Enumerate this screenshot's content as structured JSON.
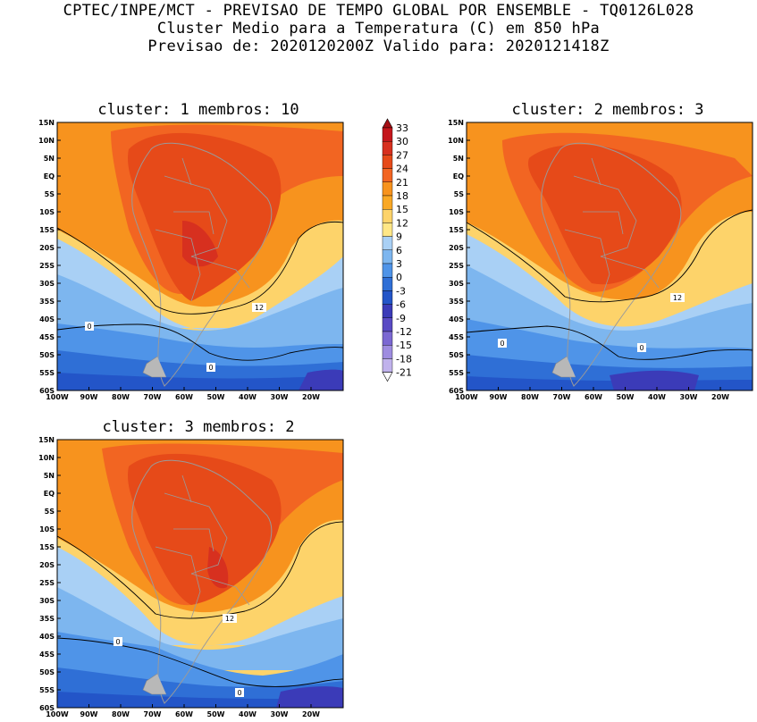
{
  "header": {
    "line1": "CPTEC/INPE/MCT - PREVISAO DE TEMPO GLOBAL POR ENSEMBLE - TQ0126L028",
    "line2": "Cluster Medio para a Temperatura (C) em 850 hPa",
    "line3": "Previsao de: 2020120200Z   Valido para: 2020121418Z"
  },
  "axes": {
    "lat_labels": [
      "15N",
      "10N",
      "5N",
      "EQ",
      "5S",
      "10S",
      "15S",
      "20S",
      "25S",
      "30S",
      "35S",
      "40S",
      "45S",
      "50S",
      "55S",
      "60S"
    ],
    "lon_labels": [
      "100W",
      "90W",
      "80W",
      "70W",
      "60W",
      "50W",
      "40W",
      "30W",
      "20W"
    ]
  },
  "colorbar": {
    "levels": [
      "33",
      "30",
      "27",
      "24",
      "21",
      "18",
      "15",
      "12",
      "9",
      "6",
      "3",
      "0",
      "-3",
      "-6",
      "-9",
      "-12",
      "-15",
      "-18",
      "-21"
    ],
    "colors": [
      "#a50f15",
      "#c4161c",
      "#d7301f",
      "#e64a19",
      "#f26522",
      "#f7931e",
      "#f9a825",
      "#fdd36a",
      "#ffe787",
      "#a9d0f5",
      "#7db6ef",
      "#4f94e8",
      "#2f6fd6",
      "#2355c8",
      "#3b3bb8",
      "#5a4bc4",
      "#7b68d2",
      "#9e8ce0",
      "#c0b2ec"
    ]
  },
  "panels": [
    {
      "title": "cluster: 1  membros: 10",
      "contour12_label": "12",
      "contour0a_label": "0",
      "contour0b_label": "0"
    },
    {
      "title": "cluster: 2  membros: 3",
      "contour12_label": "12",
      "contour0a_label": "0",
      "contour0b_label": "0"
    },
    {
      "title": "cluster: 3  membros: 2",
      "contour12_label": "12",
      "contour0a_label": "0",
      "contour0b_label": "0"
    }
  ]
}
